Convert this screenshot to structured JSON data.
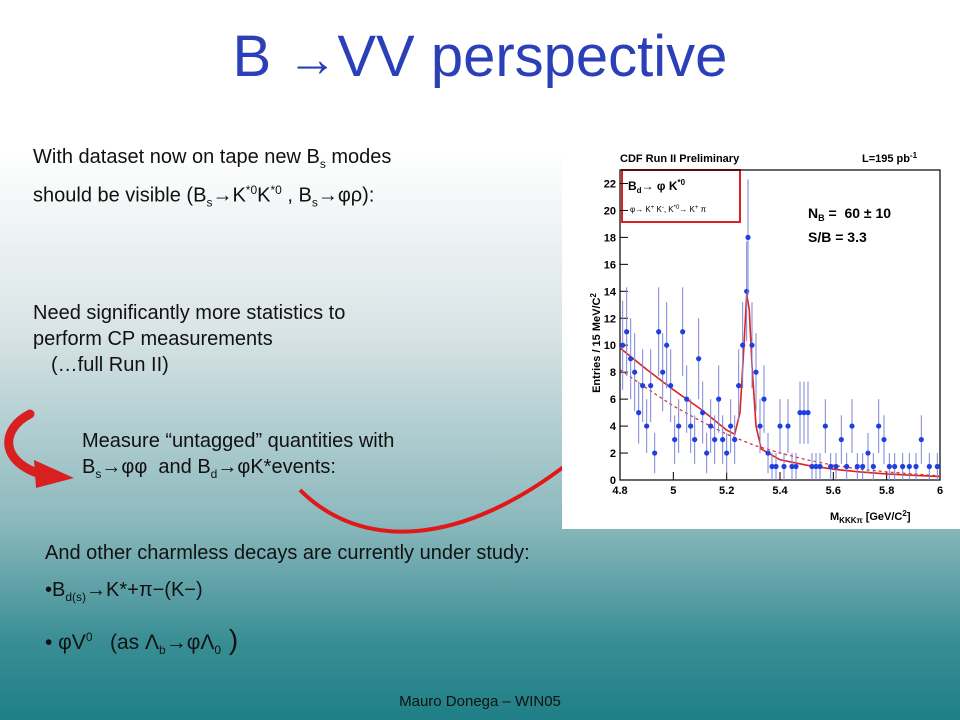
{
  "slide": {
    "title_letter": "B",
    "title_arrow": "→",
    "title_rest": "VV perspective",
    "footer": "Mauro Donega – WIN05"
  },
  "text": {
    "p1_line1_a": "With dataset now on tape new B",
    "p1_line1_sub": "s",
    "p1_line1_b": " modes",
    "p1_line2_a": "should be visible (B",
    "p1_line2_sub1": "s",
    "p1_line2_arrow": "→",
    "p1_line2_k1": "K",
    "p1_line2_sup1": "*0",
    "p1_line2_k2": "K",
    "p1_line2_sup2": "*0",
    "p1_line2_c": " , B",
    "p1_line2_sub2": "s",
    "p1_line2_arrow2": "→",
    "p1_line2_end": "φρ):",
    "p2_line1": "Need significantly more statistics to",
    "p2_line2": "perform CP measurements",
    "p2_line3": "(…full Run II)",
    "p3_line1": "Measure “untagged” quantities with",
    "p3_line2_a": "B",
    "p3_line2_sub1": "s",
    "p3_line2_arrow": "→",
    "p3_line2_phiphi": "φφ",
    "p3_line2_b": "  and B",
    "p3_line2_sub2": "d",
    "p3_line2_arrow2": "→",
    "p3_line2_end": "φK*events:",
    "p4_line1": "And other charmless decays are currently under study:",
    "bullet1_a": "•B",
    "bullet1_sub": "d(s)",
    "bullet1_arrow": "→",
    "bullet1_end": "K*+π−(K−)",
    "bullet2_a": "• φV",
    "bullet2_sup": "0",
    "bullet2_b": "   (as Λ",
    "bullet2_sub": "b",
    "bullet2_arrow": "→",
    "bullet2_end": "φΛ",
    "bullet2_sub2": "0",
    "bullet2_close": " )"
  },
  "chart_data": {
    "type": "scatter",
    "title": "CDF Run II Preliminary",
    "lumi": "L=195 pb",
    "lumi_sup": "-1",
    "ylabel": "Entries / 15 MeV/C",
    "ylabel_sup": "2",
    "xlabel": "M",
    "xlabel_sub": "KKKπ",
    "xlabel_unit": " [GeV/C",
    "xlabel_unit_sup": "2",
    "xlabel_close": "]",
    "xlim": [
      4.8,
      6.0
    ],
    "ylim": [
      0,
      23
    ],
    "x_ticks": [
      4.8,
      5,
      5.2,
      5.4,
      5.6,
      5.8,
      6
    ],
    "x_tick_labels": [
      "4.8",
      "5",
      "5.2",
      "5.4",
      "5.6",
      "5.8",
      "6"
    ],
    "y_ticks": [
      0,
      2,
      4,
      6,
      8,
      10,
      12,
      14,
      16,
      18,
      20,
      22
    ],
    "y_tick_labels": [
      "0",
      "2",
      "4",
      "6",
      "8",
      "10",
      "12",
      "14",
      "16",
      "18",
      "20",
      "22"
    ],
    "legend_box": {
      "line1_a": "B",
      "line1_sub": "d",
      "line1_arrow": "→",
      "line1_b": " φ  K",
      "line1_sup": "*0",
      "line2": "φ→ K",
      "line2_sup1": "+",
      "line2_b": " K",
      "line2_sup2": "-",
      "line2_c": ", K",
      "line2_sup3": "*0",
      "line2_d": "→ K",
      "line2_sup4": "+",
      "line2_e": " π"
    },
    "annotations": {
      "nb_label": "N",
      "nb_sub": "B",
      "nb_value": " =  60 ± 10",
      "sb": "S/B = 3.3"
    },
    "points": [
      {
        "x": 4.81,
        "y": 10,
        "err": 3.3
      },
      {
        "x": 4.825,
        "y": 11,
        "err": 3.3
      },
      {
        "x": 4.84,
        "y": 9,
        "err": 3.0
      },
      {
        "x": 4.855,
        "y": 8,
        "err": 2.9
      },
      {
        "x": 4.87,
        "y": 5,
        "err": 2.3
      },
      {
        "x": 4.885,
        "y": 7,
        "err": 2.7
      },
      {
        "x": 4.9,
        "y": 4,
        "err": 2.0
      },
      {
        "x": 4.915,
        "y": 7,
        "err": 2.7
      },
      {
        "x": 4.93,
        "y": 2,
        "err": 1.5
      },
      {
        "x": 4.945,
        "y": 11,
        "err": 3.3
      },
      {
        "x": 4.96,
        "y": 8,
        "err": 2.9
      },
      {
        "x": 4.975,
        "y": 10,
        "err": 3.2
      },
      {
        "x": 4.99,
        "y": 7,
        "err": 2.7
      },
      {
        "x": 5.005,
        "y": 3,
        "err": 1.8
      },
      {
        "x": 5.02,
        "y": 4,
        "err": 2.0
      },
      {
        "x": 5.035,
        "y": 11,
        "err": 3.3
      },
      {
        "x": 5.05,
        "y": 6,
        "err": 2.5
      },
      {
        "x": 5.065,
        "y": 4,
        "err": 2.0
      },
      {
        "x": 5.08,
        "y": 3,
        "err": 1.8
      },
      {
        "x": 5.095,
        "y": 9,
        "err": 3.0
      },
      {
        "x": 5.11,
        "y": 5,
        "err": 2.3
      },
      {
        "x": 5.125,
        "y": 2,
        "err": 1.5
      },
      {
        "x": 5.14,
        "y": 4,
        "err": 2.0
      },
      {
        "x": 5.155,
        "y": 3,
        "err": 1.8
      },
      {
        "x": 5.17,
        "y": 6,
        "err": 2.5
      },
      {
        "x": 5.185,
        "y": 3,
        "err": 1.8
      },
      {
        "x": 5.2,
        "y": 2,
        "err": 1.5
      },
      {
        "x": 5.215,
        "y": 4,
        "err": 2.0
      },
      {
        "x": 5.23,
        "y": 3,
        "err": 1.8
      },
      {
        "x": 5.245,
        "y": 7,
        "err": 2.7
      },
      {
        "x": 5.26,
        "y": 10,
        "err": 3.2
      },
      {
        "x": 5.275,
        "y": 14,
        "err": 3.7
      },
      {
        "x": 5.28,
        "y": 18,
        "err": 4.3
      },
      {
        "x": 5.295,
        "y": 10,
        "err": 3.2
      },
      {
        "x": 5.31,
        "y": 8,
        "err": 2.9
      },
      {
        "x": 5.325,
        "y": 4,
        "err": 2.0
      },
      {
        "x": 5.34,
        "y": 6,
        "err": 2.5
      },
      {
        "x": 5.355,
        "y": 2,
        "err": 1.5
      },
      {
        "x": 5.37,
        "y": 1,
        "err": 1.0
      },
      {
        "x": 5.385,
        "y": 1,
        "err": 1.0
      },
      {
        "x": 5.4,
        "y": 4,
        "err": 2.0
      },
      {
        "x": 5.415,
        "y": 1,
        "err": 1.0
      },
      {
        "x": 5.43,
        "y": 4,
        "err": 2.0
      },
      {
        "x": 5.445,
        "y": 1,
        "err": 1.0
      },
      {
        "x": 5.46,
        "y": 1,
        "err": 1.0
      },
      {
        "x": 5.475,
        "y": 5,
        "err": 2.3
      },
      {
        "x": 5.49,
        "y": 5,
        "err": 2.3
      },
      {
        "x": 5.505,
        "y": 5,
        "err": 2.3
      },
      {
        "x": 5.52,
        "y": 1,
        "err": 1.0
      },
      {
        "x": 5.535,
        "y": 1,
        "err": 1.0
      },
      {
        "x": 5.55,
        "y": 1,
        "err": 1.0
      },
      {
        "x": 5.57,
        "y": 4,
        "err": 2.0
      },
      {
        "x": 5.59,
        "y": 1,
        "err": 1.0
      },
      {
        "x": 5.61,
        "y": 1,
        "err": 1.0
      },
      {
        "x": 5.63,
        "y": 3,
        "err": 1.8
      },
      {
        "x": 5.65,
        "y": 1,
        "err": 1.0
      },
      {
        "x": 5.67,
        "y": 4,
        "err": 2.0
      },
      {
        "x": 5.69,
        "y": 1,
        "err": 1.0
      },
      {
        "x": 5.71,
        "y": 1,
        "err": 1.0
      },
      {
        "x": 5.73,
        "y": 2,
        "err": 1.5
      },
      {
        "x": 5.75,
        "y": 1,
        "err": 1.0
      },
      {
        "x": 5.77,
        "y": 4,
        "err": 2.0
      },
      {
        "x": 5.79,
        "y": 3,
        "err": 1.8
      },
      {
        "x": 5.81,
        "y": 1,
        "err": 1.0
      },
      {
        "x": 5.83,
        "y": 1,
        "err": 1.0
      },
      {
        "x": 5.86,
        "y": 1,
        "err": 1.0
      },
      {
        "x": 5.885,
        "y": 1,
        "err": 1.0
      },
      {
        "x": 5.91,
        "y": 1,
        "err": 1.0
      },
      {
        "x": 5.93,
        "y": 3,
        "err": 1.8
      },
      {
        "x": 5.96,
        "y": 1,
        "err": 1.0
      },
      {
        "x": 5.99,
        "y": 1,
        "err": 1.0
      }
    ],
    "fit_total": [
      [
        4.8,
        9.8
      ],
      [
        4.9,
        8.2
      ],
      [
        5.0,
        6.7
      ],
      [
        5.1,
        5.3
      ],
      [
        5.15,
        4.5
      ],
      [
        5.2,
        3.7
      ],
      [
        5.23,
        3.4
      ],
      [
        5.25,
        5.0
      ],
      [
        5.265,
        10.0
      ],
      [
        5.275,
        13.8
      ],
      [
        5.285,
        12.6
      ],
      [
        5.295,
        8.5
      ],
      [
        5.31,
        4.0
      ],
      [
        5.33,
        2.3
      ],
      [
        5.4,
        1.5
      ],
      [
        5.5,
        1.1
      ],
      [
        5.6,
        0.8
      ],
      [
        5.7,
        0.6
      ],
      [
        5.8,
        0.45
      ],
      [
        5.9,
        0.35
      ],
      [
        6.0,
        0.25
      ]
    ],
    "fit_background": [
      [
        4.8,
        8.2
      ],
      [
        4.9,
        6.8
      ],
      [
        5.0,
        5.5
      ],
      [
        5.1,
        4.4
      ],
      [
        5.2,
        3.4
      ],
      [
        5.3,
        2.6
      ],
      [
        5.4,
        2.0
      ],
      [
        5.5,
        1.5
      ],
      [
        5.6,
        1.1
      ],
      [
        5.7,
        0.8
      ],
      [
        5.8,
        0.6
      ],
      [
        5.9,
        0.45
      ],
      [
        6.0,
        0.3
      ]
    ]
  }
}
